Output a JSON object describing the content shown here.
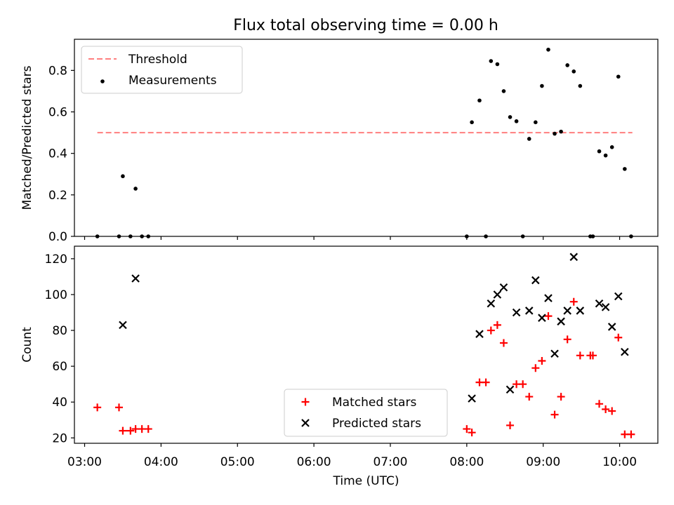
{
  "chart_data": [
    {
      "type": "scatter",
      "title": "Flux total observing time = 0.00 h",
      "xlabel": "",
      "ylabel": "Matched/Predicted stars",
      "xlim": [
        "02:52",
        "10:30"
      ],
      "ylim": [
        0,
        0.95
      ],
      "yticks": [
        0.0,
        0.2,
        0.4,
        0.6,
        0.8
      ],
      "ytick_labels": [
        "0.0",
        "0.2",
        "0.4",
        "0.6",
        "0.8"
      ],
      "legend_position": "top-left",
      "threshold": {
        "name": "Threshold",
        "value": 0.5,
        "x_start": "03:10",
        "x_end": "10:10",
        "color": "#ff7f7f"
      },
      "series": [
        {
          "name": "Measurements",
          "color": "#000000",
          "marker": "dot",
          "points": [
            [
              "03:10",
              0.0
            ],
            [
              "03:27",
              0.0
            ],
            [
              "03:30",
              0.29
            ],
            [
              "03:36",
              0.0
            ],
            [
              "03:40",
              0.23
            ],
            [
              "03:45",
              0.0
            ],
            [
              "03:50",
              0.0
            ],
            [
              "08:00",
              0.0
            ],
            [
              "08:04",
              0.55
            ],
            [
              "08:10",
              0.655
            ],
            [
              "08:15",
              0.0
            ],
            [
              "08:19",
              0.845
            ],
            [
              "08:24",
              0.83
            ],
            [
              "08:29",
              0.7
            ],
            [
              "08:34",
              0.575
            ],
            [
              "08:39",
              0.555
            ],
            [
              "08:44",
              0.0
            ],
            [
              "08:49",
              0.47
            ],
            [
              "08:54",
              0.55
            ],
            [
              "08:59",
              0.725
            ],
            [
              "09:04",
              0.9
            ],
            [
              "09:09",
              0.495
            ],
            [
              "09:14",
              0.505
            ],
            [
              "09:19",
              0.825
            ],
            [
              "09:24",
              0.795
            ],
            [
              "09:29",
              0.725
            ],
            [
              "09:37",
              0.0
            ],
            [
              "09:39",
              0.0
            ],
            [
              "09:44",
              0.41
            ],
            [
              "09:49",
              0.39
            ],
            [
              "09:54",
              0.43
            ],
            [
              "09:59",
              0.77
            ],
            [
              "10:04",
              0.325
            ],
            [
              "10:09",
              0.0
            ]
          ]
        }
      ]
    },
    {
      "type": "scatter",
      "title": "",
      "xlabel": "Time (UTC)",
      "ylabel": "Count",
      "xlim": [
        "02:52",
        "10:30"
      ],
      "ylim": [
        17,
        127
      ],
      "xticks": [
        "03:00",
        "04:00",
        "05:00",
        "06:00",
        "07:00",
        "08:00",
        "09:00",
        "10:00"
      ],
      "yticks": [
        20,
        40,
        60,
        80,
        100,
        120
      ],
      "ytick_labels": [
        "20",
        "40",
        "60",
        "80",
        "100",
        "120"
      ],
      "legend_position": "lower-center",
      "series": [
        {
          "name": "Matched stars",
          "color": "#ff0000",
          "marker": "plus",
          "points": [
            [
              "03:10",
              37
            ],
            [
              "03:27",
              37
            ],
            [
              "03:30",
              24
            ],
            [
              "03:36",
              24
            ],
            [
              "03:40",
              25
            ],
            [
              "03:45",
              25
            ],
            [
              "03:50",
              25
            ],
            [
              "08:00",
              25
            ],
            [
              "08:04",
              23
            ],
            [
              "08:10",
              51
            ],
            [
              "08:15",
              51
            ],
            [
              "08:19",
              80
            ],
            [
              "08:24",
              83
            ],
            [
              "08:29",
              73
            ],
            [
              "08:34",
              27
            ],
            [
              "08:39",
              50
            ],
            [
              "08:44",
              50
            ],
            [
              "08:49",
              43
            ],
            [
              "08:54",
              59
            ],
            [
              "08:59",
              63
            ],
            [
              "09:04",
              88
            ],
            [
              "09:09",
              33
            ],
            [
              "09:14",
              43
            ],
            [
              "09:19",
              75
            ],
            [
              "09:24",
              96
            ],
            [
              "09:29",
              66
            ],
            [
              "09:37",
              66
            ],
            [
              "09:39",
              66
            ],
            [
              "09:44",
              39
            ],
            [
              "09:49",
              36
            ],
            [
              "09:54",
              35
            ],
            [
              "09:59",
              76
            ],
            [
              "10:04",
              22
            ],
            [
              "10:09",
              22
            ]
          ]
        },
        {
          "name": "Predicted stars",
          "color": "#000000",
          "marker": "x",
          "points": [
            [
              "03:30",
              83
            ],
            [
              "03:40",
              109
            ],
            [
              "08:04",
              42
            ],
            [
              "08:10",
              78
            ],
            [
              "08:19",
              95
            ],
            [
              "08:24",
              100
            ],
            [
              "08:29",
              104
            ],
            [
              "08:34",
              47
            ],
            [
              "08:39",
              90
            ],
            [
              "08:49",
              91
            ],
            [
              "08:54",
              108
            ],
            [
              "08:59",
              87
            ],
            [
              "09:04",
              98
            ],
            [
              "09:09",
              67
            ],
            [
              "09:14",
              85
            ],
            [
              "09:19",
              91
            ],
            [
              "09:24",
              121
            ],
            [
              "09:29",
              91
            ],
            [
              "09:44",
              95
            ],
            [
              "09:49",
              93
            ],
            [
              "09:54",
              82
            ],
            [
              "09:59",
              99
            ],
            [
              "10:04",
              68
            ]
          ]
        }
      ]
    }
  ]
}
